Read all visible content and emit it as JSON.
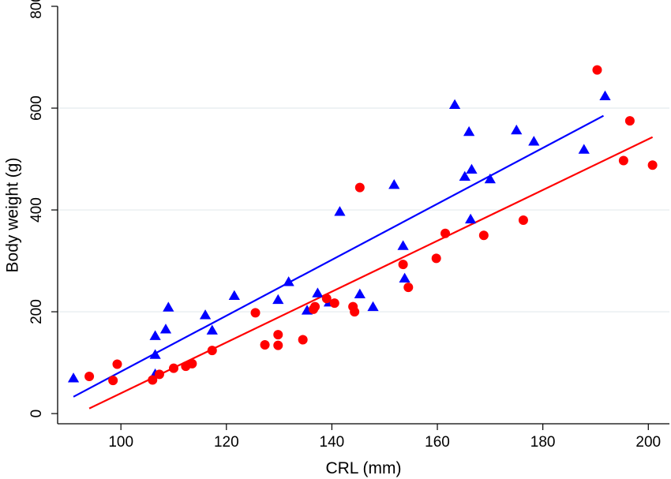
{
  "chart_data": {
    "type": "scatter",
    "title": "",
    "xlabel": "CRL (mm)",
    "ylabel": "Body weight (g)",
    "xlim": [
      88,
      204
    ],
    "ylim": [
      -20,
      800
    ],
    "xticks": [
      100,
      120,
      140,
      160,
      180,
      200
    ],
    "yticks": [
      0,
      200,
      400,
      600,
      800
    ],
    "grid": "horizontal",
    "legend": "none",
    "series": [
      {
        "marker": "triangle",
        "color": "#0000ff",
        "points": [
          [
            91,
            69
          ],
          [
            106.5,
            77
          ],
          [
            106.5,
            115
          ],
          [
            106.5,
            152
          ],
          [
            108.5,
            165
          ],
          [
            109,
            208
          ],
          [
            116,
            193
          ],
          [
            117.3,
            163
          ],
          [
            121.5,
            231
          ],
          [
            129.8,
            223
          ],
          [
            131.8,
            258
          ],
          [
            135.3,
            202
          ],
          [
            137.3,
            236
          ],
          [
            139.5,
            218
          ],
          [
            145.3,
            234
          ],
          [
            147.8,
            209
          ],
          [
            141.5,
            396
          ],
          [
            151.8,
            449
          ],
          [
            153.5,
            329
          ],
          [
            153.8,
            265
          ],
          [
            163.3,
            606
          ],
          [
            165.2,
            465
          ],
          [
            166,
            553
          ],
          [
            166.3,
            381
          ],
          [
            166.5,
            479
          ],
          [
            170,
            460
          ],
          [
            175,
            556
          ],
          [
            178.3,
            534
          ],
          [
            187.8,
            518
          ],
          [
            191.8,
            623
          ]
        ],
        "fit": {
          "x": [
            91,
            191.5
          ],
          "y": [
            33,
            585
          ]
        }
      },
      {
        "marker": "circle",
        "color": "#ff0000",
        "points": [
          [
            94,
            73
          ],
          [
            98.5,
            65
          ],
          [
            99.3,
            97
          ],
          [
            106,
            66
          ],
          [
            107.3,
            77
          ],
          [
            110,
            89
          ],
          [
            112.3,
            93
          ],
          [
            113.5,
            98
          ],
          [
            117.3,
            124
          ],
          [
            125.5,
            198
          ],
          [
            127.3,
            135
          ],
          [
            129.8,
            155
          ],
          [
            129.8,
            134
          ],
          [
            134.5,
            145
          ],
          [
            136.5,
            205
          ],
          [
            136.8,
            210
          ],
          [
            139,
            226
          ],
          [
            140.5,
            217
          ],
          [
            144,
            210
          ],
          [
            144.3,
            200
          ],
          [
            145.3,
            444
          ],
          [
            153.5,
            293
          ],
          [
            154.5,
            248
          ],
          [
            159.8,
            305
          ],
          [
            161.5,
            354
          ],
          [
            168.8,
            350
          ],
          [
            176.3,
            380
          ],
          [
            190.3,
            675
          ],
          [
            195.3,
            497
          ],
          [
            196.5,
            575
          ],
          [
            200.8,
            488
          ]
        ],
        "fit": {
          "x": [
            94,
            200.8
          ],
          "y": [
            10,
            543
          ]
        }
      }
    ]
  }
}
